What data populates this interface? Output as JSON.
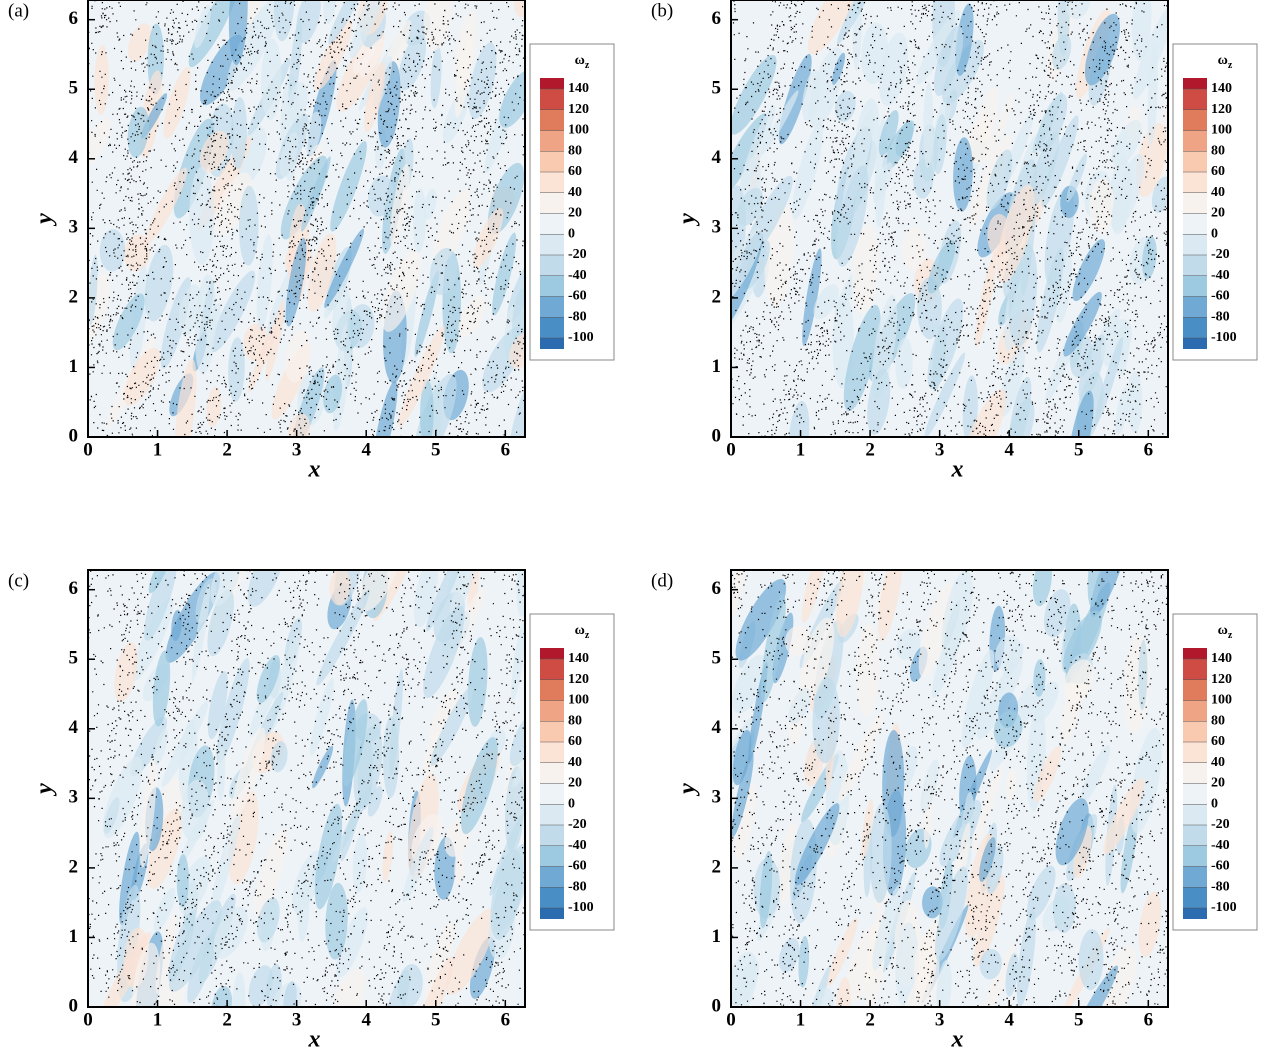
{
  "chart_data": [
    {
      "type": "contour",
      "panel_label": "(a)",
      "xlabel": "x",
      "ylabel": "y",
      "xlim": [
        0,
        6.283
      ],
      "ylim": [
        0,
        6.283
      ],
      "xticks": [
        0,
        1,
        2,
        3,
        4,
        5,
        6
      ],
      "yticks": [
        0,
        1,
        2,
        3,
        4,
        5,
        6
      ],
      "colorbar_title": "ω",
      "colorbar_title_sub": "z",
      "levels": [
        140,
        120,
        100,
        80,
        60,
        40,
        20,
        0,
        -20,
        -40,
        -60,
        -80,
        -100
      ],
      "colors": [
        "#b2182b",
        "#cf4c44",
        "#e07b5c",
        "#efa486",
        "#f9c9b0",
        "#fbe3d6",
        "#f8f2ee",
        "#eef3f7",
        "#dbe9f2",
        "#c1dbeb",
        "#9ecae1",
        "#6fa9d4",
        "#4a8ec6",
        "#2b6cb0"
      ]
    },
    {
      "type": "contour",
      "panel_label": "(b)",
      "xlabel": "x",
      "ylabel": "y",
      "xlim": [
        0,
        6.283
      ],
      "ylim": [
        0,
        6.283
      ],
      "xticks": [
        0,
        1,
        2,
        3,
        4,
        5,
        6
      ],
      "yticks": [
        0,
        1,
        2,
        3,
        4,
        5,
        6
      ],
      "colorbar_title": "ω",
      "colorbar_title_sub": "z",
      "levels": [
        140,
        120,
        100,
        80,
        60,
        40,
        20,
        0,
        -20,
        -40,
        -60,
        -80,
        -100
      ],
      "colors": [
        "#b2182b",
        "#cf4c44",
        "#e07b5c",
        "#efa486",
        "#f9c9b0",
        "#fbe3d6",
        "#f8f2ee",
        "#eef3f7",
        "#dbe9f2",
        "#c1dbeb",
        "#9ecae1",
        "#6fa9d4",
        "#4a8ec6",
        "#2b6cb0"
      ]
    },
    {
      "type": "contour",
      "panel_label": "(c)",
      "xlabel": "x",
      "ylabel": "y",
      "xlim": [
        0,
        6.283
      ],
      "ylim": [
        0,
        6.283
      ],
      "xticks": [
        0,
        1,
        2,
        3,
        4,
        5,
        6
      ],
      "yticks": [
        0,
        1,
        2,
        3,
        4,
        5,
        6
      ],
      "colorbar_title": "ω",
      "colorbar_title_sub": "z",
      "levels": [
        140,
        120,
        100,
        80,
        60,
        40,
        20,
        0,
        -20,
        -40,
        -60,
        -80,
        -100
      ],
      "colors": [
        "#b2182b",
        "#cf4c44",
        "#e07b5c",
        "#efa486",
        "#f9c9b0",
        "#fbe3d6",
        "#f8f2ee",
        "#eef3f7",
        "#dbe9f2",
        "#c1dbeb",
        "#9ecae1",
        "#6fa9d4",
        "#4a8ec6",
        "#2b6cb0"
      ]
    },
    {
      "type": "contour",
      "panel_label": "(d)",
      "xlabel": "x",
      "ylabel": "y",
      "xlim": [
        0,
        6.283
      ],
      "ylim": [
        0,
        6.283
      ],
      "xticks": [
        0,
        1,
        2,
        3,
        4,
        5,
        6
      ],
      "yticks": [
        0,
        1,
        2,
        3,
        4,
        5,
        6
      ],
      "colorbar_title": "ω",
      "colorbar_title_sub": "z",
      "levels": [
        140,
        120,
        100,
        80,
        60,
        40,
        20,
        0,
        -20,
        -40,
        -60,
        -80,
        -100
      ],
      "colors": [
        "#b2182b",
        "#cf4c44",
        "#e07b5c",
        "#efa486",
        "#f9c9b0",
        "#fbe3d6",
        "#f8f2ee",
        "#eef3f7",
        "#dbe9f2",
        "#c1dbeb",
        "#9ecae1",
        "#6fa9d4",
        "#4a8ec6",
        "#2b6cb0"
      ]
    }
  ]
}
